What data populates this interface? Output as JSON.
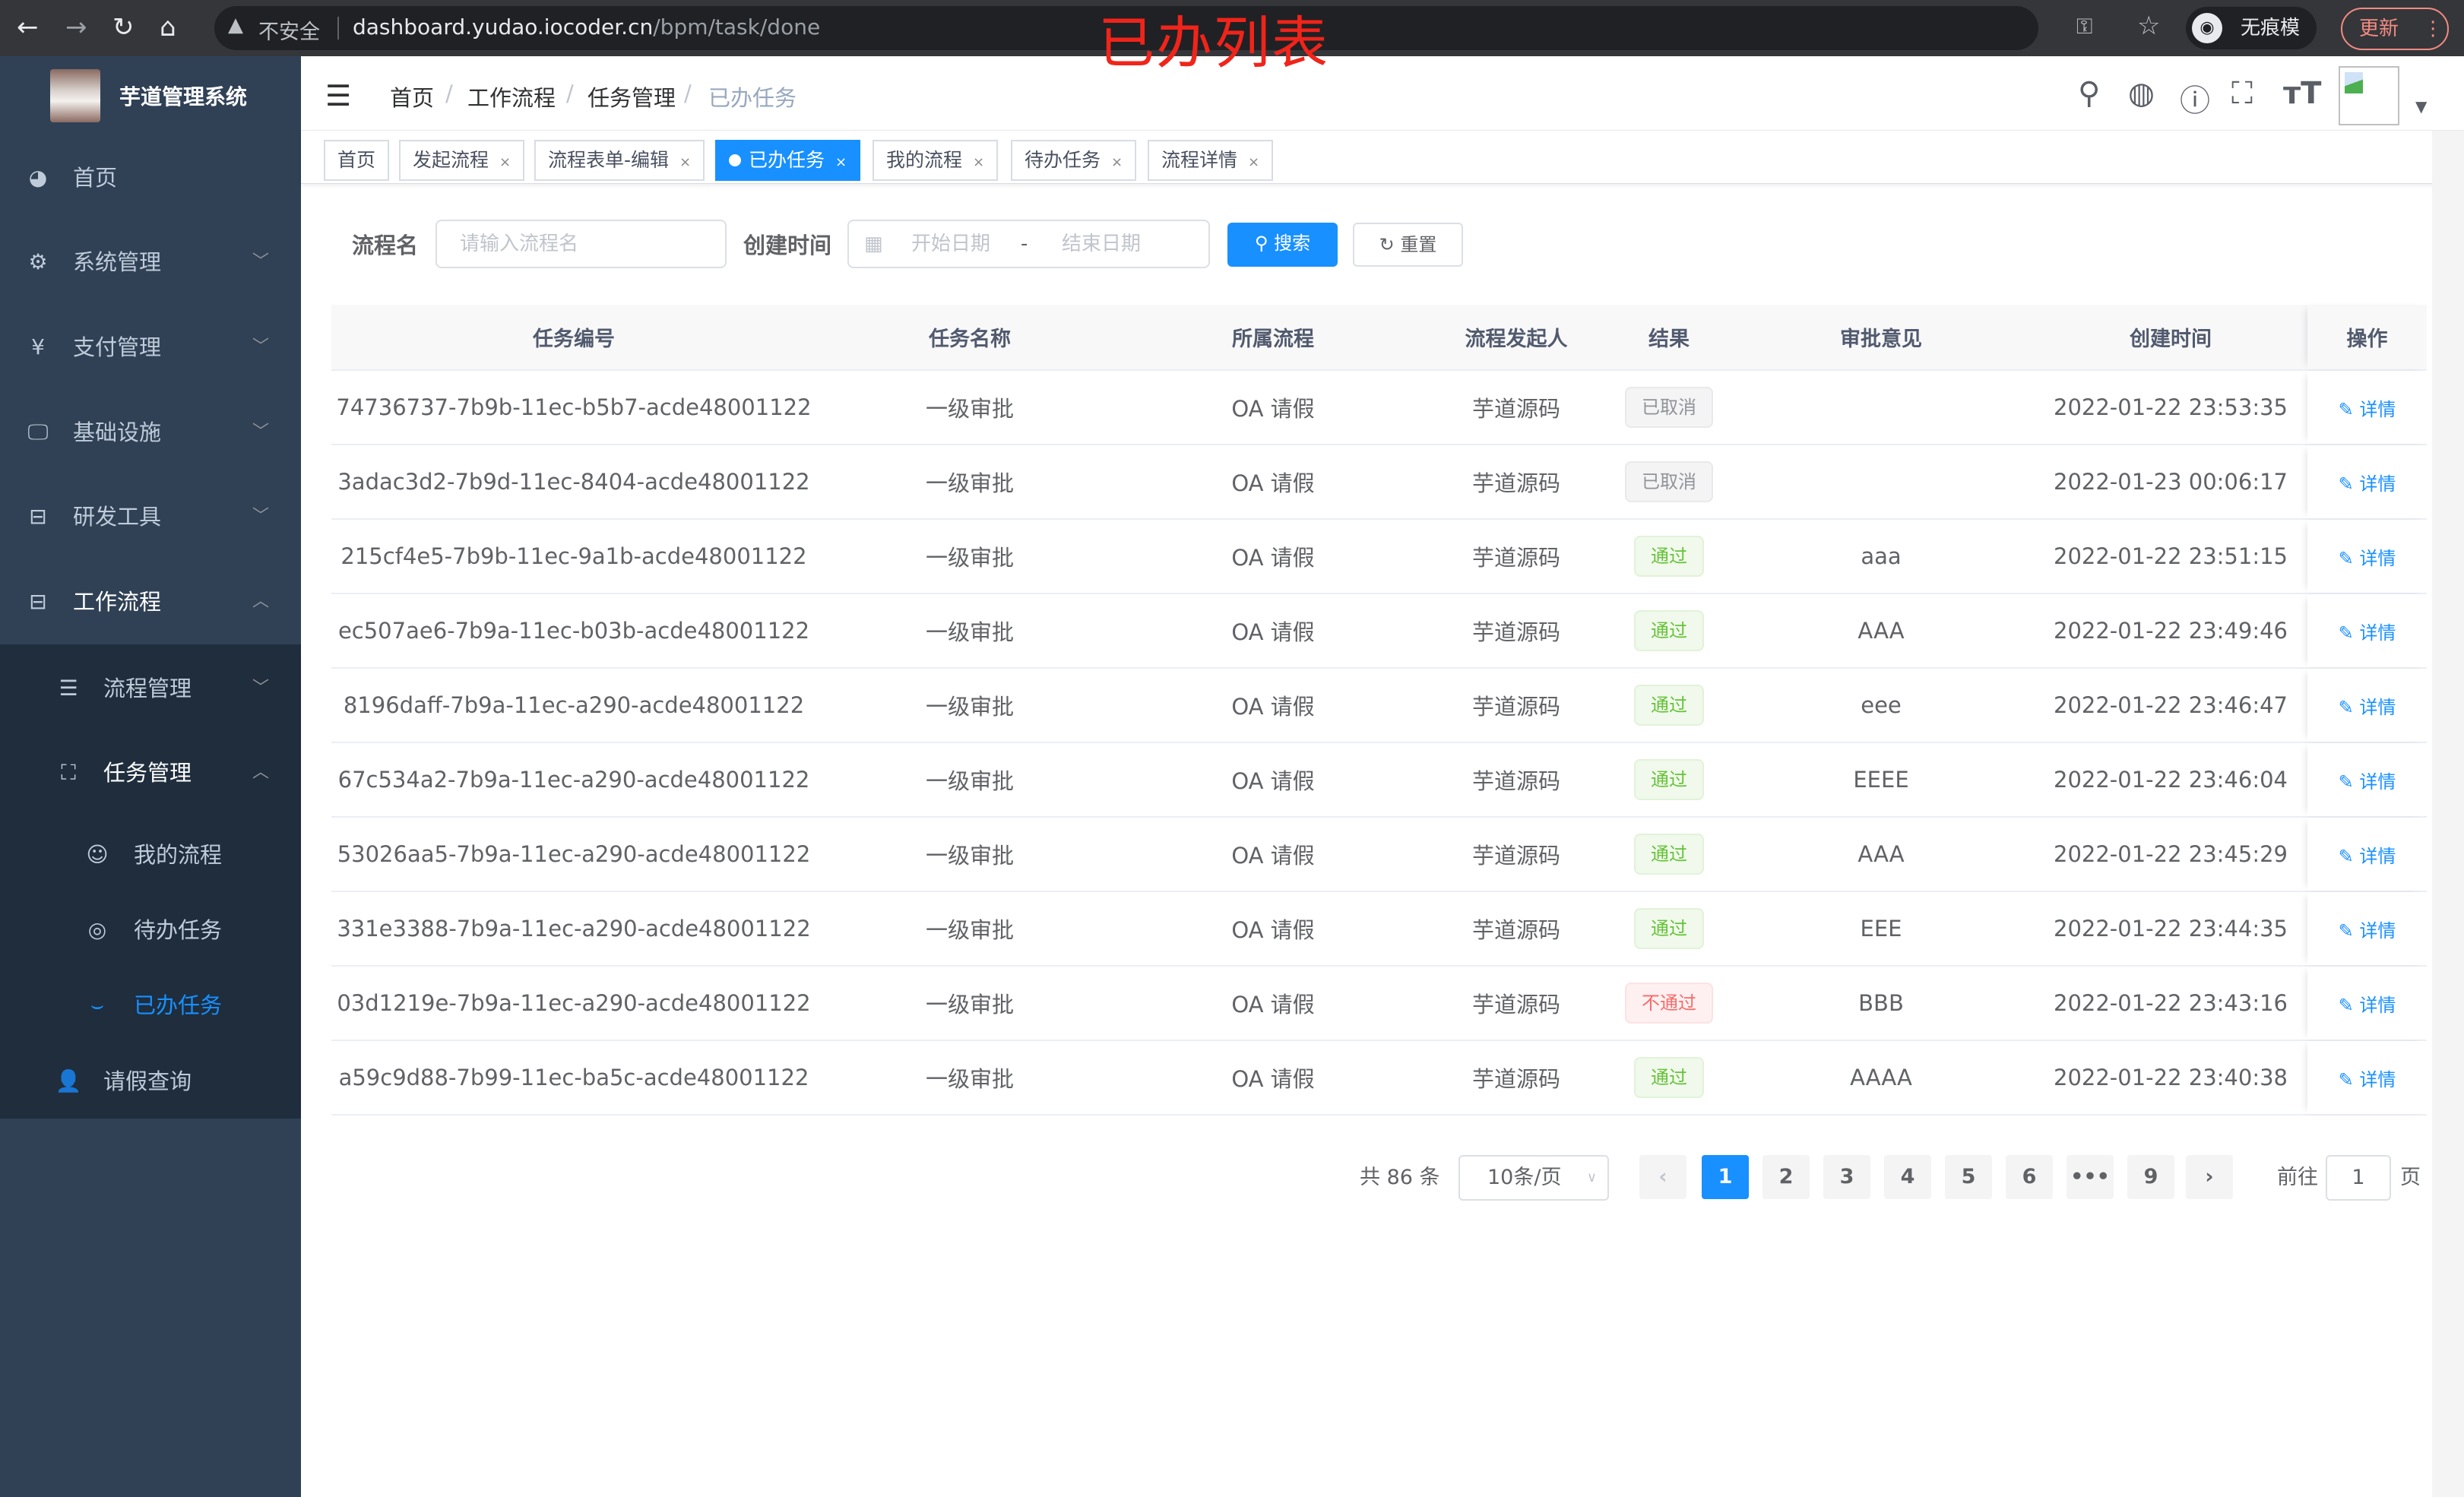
{
  "browser": {
    "insecure_label": "不安全",
    "url_host": "dashboard.yudao.iocoder.cn",
    "url_path": "/bpm/task/done",
    "incognito_label": "无痕模式",
    "update_label": "更新"
  },
  "overlay_title": "已办列表",
  "sidebar": {
    "title": "芋道管理系统",
    "items": [
      {
        "label": "首页",
        "icon": "dashboard-icon"
      },
      {
        "label": "系统管理",
        "icon": "gear-icon"
      },
      {
        "label": "支付管理",
        "icon": "yen-icon"
      },
      {
        "label": "基础设施",
        "icon": "monitor-icon"
      },
      {
        "label": "研发工具",
        "icon": "toolbox-icon"
      },
      {
        "label": "工作流程",
        "icon": "toolbox-icon"
      }
    ],
    "sub_items": [
      {
        "label": "流程管理",
        "icon": "list-icon"
      },
      {
        "label": "任务管理",
        "icon": "task-icon"
      }
    ],
    "task_items": [
      {
        "label": "我的流程",
        "icon": "people-icon"
      },
      {
        "label": "待办任务",
        "icon": "eye-open-icon"
      },
      {
        "label": "已办任务",
        "icon": "eye-closed-icon"
      }
    ],
    "leave_item": {
      "label": "请假查询",
      "icon": "user-icon"
    },
    "active_color": "#1890ff"
  },
  "breadcrumb": [
    "首页",
    "工作流程",
    "任务管理",
    "已办任务"
  ],
  "tags": [
    {
      "label": "首页",
      "closable": false
    },
    {
      "label": "发起流程",
      "closable": true
    },
    {
      "label": "流程表单-编辑",
      "closable": true
    },
    {
      "label": "已办任务",
      "closable": true,
      "active": true
    },
    {
      "label": "我的流程",
      "closable": true
    },
    {
      "label": "待办任务",
      "closable": true
    },
    {
      "label": "流程详情",
      "closable": true
    }
  ],
  "filters": {
    "name_label": "流程名",
    "name_placeholder": "请输入流程名",
    "time_label": "创建时间",
    "start_placeholder": "开始日期",
    "range_sep": "-",
    "end_placeholder": "结束日期",
    "search_label": "搜索",
    "reset_label": "重置"
  },
  "table": {
    "columns": [
      "任务编号",
      "任务名称",
      "所属流程",
      "流程发起人",
      "结果",
      "审批意见",
      "创建时间",
      "操作"
    ],
    "detail_label": "详情",
    "rows": [
      {
        "id": "74736737-7b9b-11ec-b5b7-acde48001122",
        "name": "一级审批",
        "process": "OA 请假",
        "starter": "芋道源码",
        "result": "已取消",
        "status": "info",
        "comment": "",
        "time": "2022-01-22 23:53:35"
      },
      {
        "id": "3adac3d2-7b9d-11ec-8404-acde48001122",
        "name": "一级审批",
        "process": "OA 请假",
        "starter": "芋道源码",
        "result": "已取消",
        "status": "info",
        "comment": "",
        "time": "2022-01-23 00:06:17"
      },
      {
        "id": "215cf4e5-7b9b-11ec-9a1b-acde48001122",
        "name": "一级审批",
        "process": "OA 请假",
        "starter": "芋道源码",
        "result": "通过",
        "status": "success",
        "comment": "aaa",
        "time": "2022-01-22 23:51:15"
      },
      {
        "id": "ec507ae6-7b9a-11ec-b03b-acde48001122",
        "name": "一级审批",
        "process": "OA 请假",
        "starter": "芋道源码",
        "result": "通过",
        "status": "success",
        "comment": "AAA",
        "time": "2022-01-22 23:49:46"
      },
      {
        "id": "8196daff-7b9a-11ec-a290-acde48001122",
        "name": "一级审批",
        "process": "OA 请假",
        "starter": "芋道源码",
        "result": "通过",
        "status": "success",
        "comment": "eee",
        "time": "2022-01-22 23:46:47"
      },
      {
        "id": "67c534a2-7b9a-11ec-a290-acde48001122",
        "name": "一级审批",
        "process": "OA 请假",
        "starter": "芋道源码",
        "result": "通过",
        "status": "success",
        "comment": "EEEE",
        "time": "2022-01-22 23:46:04"
      },
      {
        "id": "53026aa5-7b9a-11ec-a290-acde48001122",
        "name": "一级审批",
        "process": "OA 请假",
        "starter": "芋道源码",
        "result": "通过",
        "status": "success",
        "comment": "AAA",
        "time": "2022-01-22 23:45:29"
      },
      {
        "id": "331e3388-7b9a-11ec-a290-acde48001122",
        "name": "一级审批",
        "process": "OA 请假",
        "starter": "芋道源码",
        "result": "通过",
        "status": "success",
        "comment": "EEE",
        "time": "2022-01-22 23:44:35"
      },
      {
        "id": "03d1219e-7b9a-11ec-a290-acde48001122",
        "name": "一级审批",
        "process": "OA 请假",
        "starter": "芋道源码",
        "result": "不通过",
        "status": "danger",
        "comment": "BBB",
        "time": "2022-01-22 23:43:16"
      },
      {
        "id": "a59c9d88-7b99-11ec-ba5c-acde48001122",
        "name": "一级审批",
        "process": "OA 请假",
        "starter": "芋道源码",
        "result": "通过",
        "status": "success",
        "comment": "AAAA",
        "time": "2022-01-22 23:40:38"
      }
    ]
  },
  "status_colors": {
    "info": {
      "bg": "#f4f4f5",
      "border": "#e9e9eb",
      "text": "#909399"
    },
    "success": {
      "bg": "#f0f9eb",
      "border": "#e1f3d8",
      "text": "#67c23a"
    },
    "danger": {
      "bg": "#fef0f0",
      "border": "#fde2e2",
      "text": "#f56c6c"
    }
  },
  "pagination": {
    "total_label": "共 86 条",
    "page_size": "10条/页",
    "pages": [
      "1",
      "2",
      "3",
      "4",
      "5",
      "6",
      "•••",
      "9"
    ],
    "current": "1",
    "goto_label": "前往",
    "goto_value": "1",
    "page_suffix": "页"
  }
}
